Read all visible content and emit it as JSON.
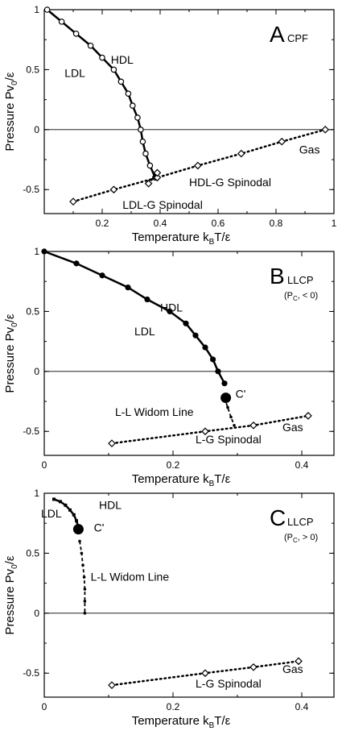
{
  "chart_data": [
    {
      "type": "line",
      "panel_letter": "A",
      "panel_subtitle": "CPF",
      "panel_condition": "",
      "xlabel": "Temperature",
      "xlabel_unit": "k",
      "xlabel_unit_sub": "B",
      "xlabel_unit_rest": "T/ε",
      "ylabel": "Pressure",
      "ylabel_unit": "Pv",
      "ylabel_unit_sub": "0",
      "ylabel_unit_rest": "/ε",
      "xlim": [
        0,
        1.0
      ],
      "ylim": [
        -0.7,
        1.0
      ],
      "xticks": [
        0.2,
        0.4,
        0.6,
        0.8,
        1
      ],
      "xtick_labels": [
        "0.2",
        "0.4",
        "0.6",
        "0.8",
        "1"
      ],
      "yticks": [
        -0.5,
        0,
        0.5,
        1
      ],
      "ytick_labels": [
        "-0.5",
        "0",
        "0.5",
        "1"
      ],
      "zero_line": true,
      "annotations": [
        {
          "text": "LDL",
          "x": 0.07,
          "y": 0.44
        },
        {
          "text": "HDL",
          "x": 0.23,
          "y": 0.55
        },
        {
          "text": "HDL-G Spinodal",
          "x": 0.5,
          "y": -0.47
        },
        {
          "text": "LDL-G Spinodal",
          "x": 0.27,
          "y": -0.66
        },
        {
          "text": "Gas",
          "x": 0.88,
          "y": -0.2
        }
      ],
      "series": [
        {
          "style": "solid-thick",
          "marker": "circle-open",
          "x": [
            0.01,
            0.06,
            0.11,
            0.16,
            0.2,
            0.24,
            0.265,
            0.29,
            0.305,
            0.322,
            0.333,
            0.34,
            0.35,
            0.365,
            0.383
          ],
          "y": [
            1.0,
            0.9,
            0.8,
            0.7,
            0.6,
            0.5,
            0.4,
            0.3,
            0.2,
            0.1,
            0.0,
            -0.1,
            -0.2,
            -0.3,
            -0.4
          ]
        },
        {
          "style": "dotted",
          "marker": "diamond-open",
          "x": [
            0.1,
            0.24,
            0.39,
            0.53,
            0.68,
            0.82,
            0.97
          ],
          "y": [
            -0.6,
            -0.5,
            -0.4,
            -0.3,
            -0.2,
            -0.1,
            0.0
          ]
        },
        {
          "style": "dotted",
          "marker": "diamond-open",
          "x": [
            0.36,
            0.39
          ],
          "y": [
            -0.45,
            -0.36
          ]
        }
      ],
      "critical_point": null
    },
    {
      "type": "line",
      "panel_letter": "B",
      "panel_subtitle": "LLCP",
      "panel_condition": "(P , < 0)",
      "panel_condition_main": "(P",
      "panel_condition_sub": "C",
      "panel_condition_rest": ", < 0)",
      "xlabel": "Temperature",
      "xlabel_unit": "k",
      "xlabel_unit_sub": "B",
      "xlabel_unit_rest": "T/ε",
      "ylabel": "Pressure",
      "ylabel_unit": "Pv",
      "ylabel_unit_sub": "0",
      "ylabel_unit_rest": "/ε",
      "xlim": [
        0,
        0.45
      ],
      "ylim": [
        -0.7,
        1.0
      ],
      "xticks": [
        0,
        0.2,
        0.4
      ],
      "xtick_labels": [
        "0",
        "0.2",
        "0.4"
      ],
      "yticks": [
        -0.5,
        0,
        0.5,
        1
      ],
      "ytick_labels": [
        "-0.5",
        "0",
        "0.5",
        "1"
      ],
      "zero_line": true,
      "annotations": [
        {
          "text": "HDL",
          "x": 0.18,
          "y": 0.5
        },
        {
          "text": "LDL",
          "x": 0.14,
          "y": 0.3
        },
        {
          "text": "C'",
          "x": 0.297,
          "y": -0.22
        },
        {
          "text": "L-L Widom Line",
          "x": 0.11,
          "y": -0.37
        },
        {
          "text": "L-G Spinodal",
          "x": 0.235,
          "y": -0.6
        },
        {
          "text": "Gas",
          "x": 0.37,
          "y": -0.5
        }
      ],
      "series": [
        {
          "style": "solid-thick",
          "marker": "circle-filled",
          "x": [
            0.0,
            0.05,
            0.09,
            0.13,
            0.16,
            0.195,
            0.22,
            0.235,
            0.25,
            0.262,
            0.27,
            0.28
          ],
          "y": [
            1.0,
            0.9,
            0.8,
            0.7,
            0.6,
            0.5,
            0.4,
            0.3,
            0.2,
            0.1,
            0.0,
            -0.1
          ]
        },
        {
          "style": "dashed",
          "marker": "small-dot",
          "x": [
            0.28,
            0.285,
            0.29,
            0.295
          ],
          "y": [
            -0.22,
            -0.3,
            -0.38,
            -0.45
          ]
        },
        {
          "style": "dotted",
          "marker": "diamond-open",
          "x": [
            0.105,
            0.25,
            0.325,
            0.41
          ],
          "y": [
            -0.6,
            -0.5,
            -0.45,
            -0.37
          ]
        }
      ],
      "critical_point": {
        "x": 0.282,
        "y": -0.22
      }
    },
    {
      "type": "line",
      "panel_letter": "C",
      "panel_subtitle": "LLCP",
      "panel_condition": "(P , > 0)",
      "panel_condition_main": "(P",
      "panel_condition_sub": "C",
      "panel_condition_rest": ", > 0)",
      "xlabel": "Temperature",
      "xlabel_unit": "k",
      "xlabel_unit_sub": "B",
      "xlabel_unit_rest": "T/ε",
      "ylabel": "Pressure",
      "ylabel_unit": "Pv",
      "ylabel_unit_sub": "0",
      "ylabel_unit_rest": "/ε",
      "xlim": [
        0,
        0.45
      ],
      "ylim": [
        -0.7,
        1.0
      ],
      "xticks": [
        0,
        0.2,
        0.4
      ],
      "xtick_labels": [
        "0",
        "0.2",
        "0.4"
      ],
      "yticks": [
        -0.5,
        0,
        0.5,
        1
      ],
      "ytick_labels": [
        "-0.5",
        "0",
        "0.5",
        "1"
      ],
      "zero_line": true,
      "annotations": [
        {
          "text": "LDL",
          "x": -0.005,
          "y": 0.8
        },
        {
          "text": "HDL",
          "x": 0.085,
          "y": 0.87
        },
        {
          "text": "C'",
          "x": 0.077,
          "y": 0.68
        },
        {
          "text": "L-L Widom Line",
          "x": 0.072,
          "y": 0.27
        },
        {
          "text": "L-G Spinodal",
          "x": 0.235,
          "y": -0.62
        },
        {
          "text": "Gas",
          "x": 0.37,
          "y": -0.5
        }
      ],
      "series": [
        {
          "style": "solid-thick",
          "marker": "small-square",
          "x": [
            0.015,
            0.025,
            0.033,
            0.04,
            0.046,
            0.05,
            0.053
          ],
          "y": [
            0.95,
            0.93,
            0.9,
            0.86,
            0.82,
            0.77,
            0.72
          ]
        },
        {
          "style": "dashed",
          "marker": "small-dot",
          "x": [
            0.055,
            0.058,
            0.06,
            0.062,
            0.063,
            0.063,
            0.063
          ],
          "y": [
            0.6,
            0.5,
            0.4,
            0.3,
            0.2,
            0.1,
            0.0
          ]
        },
        {
          "style": "dotted",
          "marker": "diamond-open",
          "x": [
            0.105,
            0.25,
            0.325,
            0.395
          ],
          "y": [
            -0.6,
            -0.5,
            -0.45,
            -0.4
          ]
        }
      ],
      "critical_point": {
        "x": 0.053,
        "y": 0.7
      }
    }
  ]
}
